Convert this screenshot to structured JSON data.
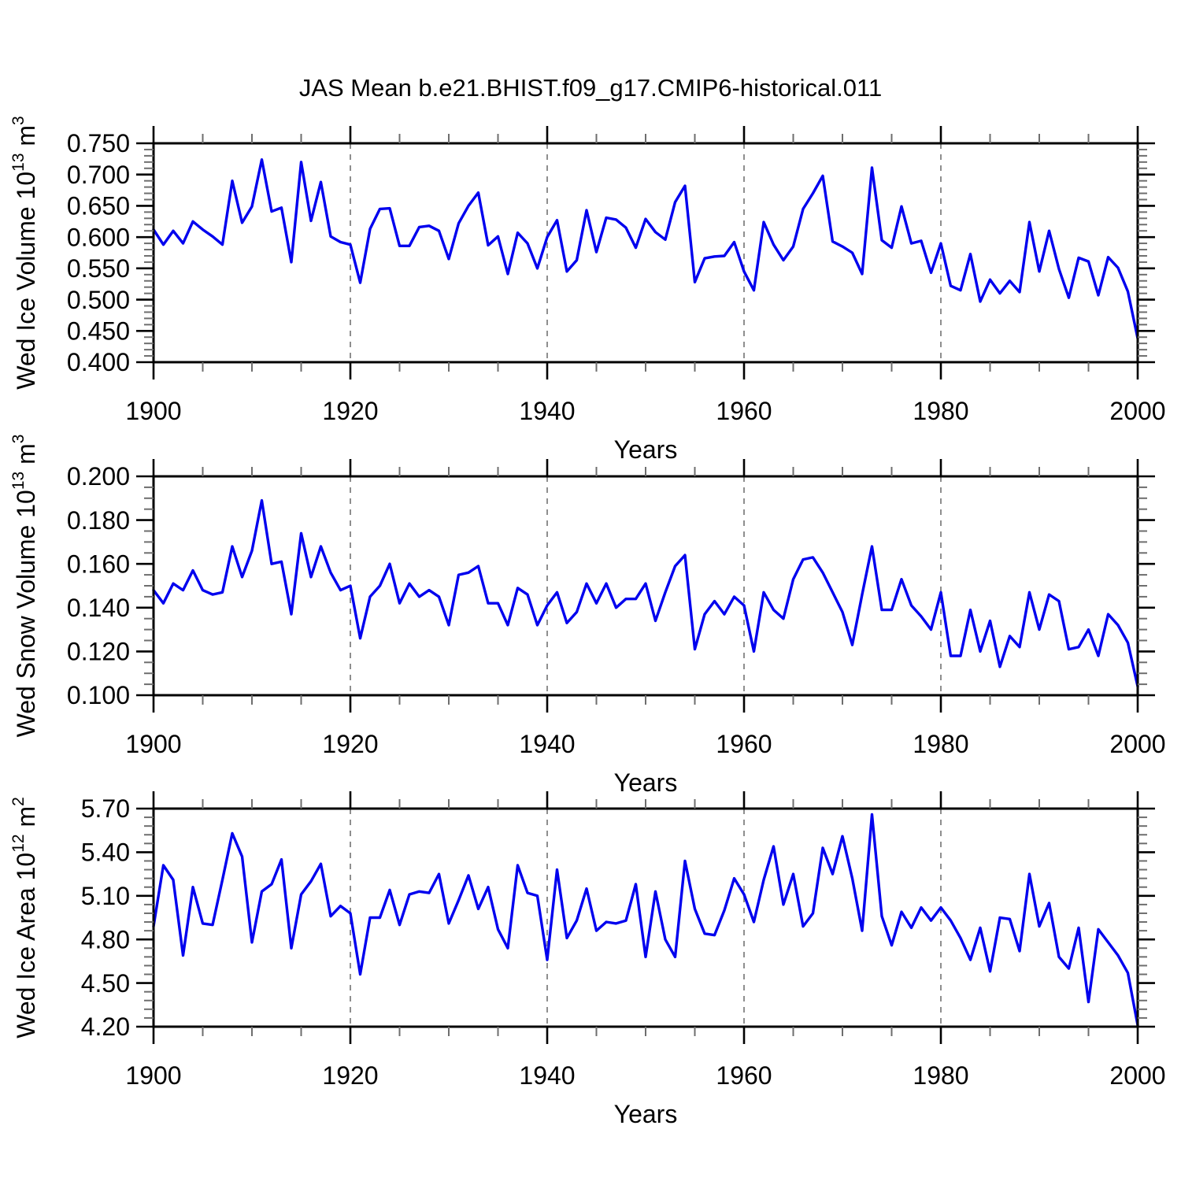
{
  "title": "JAS Mean b.e21.BHIST.f09_g17.CMIP6-historical.011",
  "colors": {
    "line": "#0000ee",
    "axis": "#000000",
    "minor_tick": "#6e6e6e",
    "grid": "#828282",
    "text": "#000000",
    "background": "#ffffff"
  },
  "chart_data": [
    {
      "type": "line",
      "name": "wed-ice-volume",
      "ylabel_plain": "Wed Ice Volume 10^13 m^3",
      "ylabel_segments": [
        [
          "Wed Ice Volume 10",
          false
        ],
        [
          "13",
          true
        ],
        [
          " m",
          false
        ],
        [
          "3",
          true
        ]
      ],
      "xlabel": "Years",
      "x_start": 1900,
      "x_end": 2000,
      "x_step": 1,
      "xticks_major": 20,
      "xticks_minor": 5,
      "ylim": [
        0.4,
        0.75
      ],
      "ytick_major": 0.05,
      "ytick_minor": 0.01,
      "ytick_decimals": 3,
      "grid_x": [
        1920,
        1940,
        1960,
        1980
      ],
      "legend": "none",
      "grid": "dashed-vertical-only",
      "values": [
        0.612,
        0.588,
        0.61,
        0.59,
        0.625,
        0.612,
        0.601,
        0.588,
        0.69,
        0.623,
        0.649,
        0.724,
        0.641,
        0.647,
        0.56,
        0.72,
        0.626,
        0.688,
        0.601,
        0.592,
        0.588,
        0.527,
        0.613,
        0.645,
        0.646,
        0.586,
        0.586,
        0.616,
        0.618,
        0.61,
        0.565,
        0.622,
        0.65,
        0.671,
        0.587,
        0.601,
        0.541,
        0.607,
        0.59,
        0.55,
        0.6,
        0.627,
        0.545,
        0.563,
        0.643,
        0.576,
        0.631,
        0.628,
        0.615,
        0.583,
        0.629,
        0.608,
        0.596,
        0.656,
        0.682,
        0.528,
        0.566,
        0.569,
        0.57,
        0.592,
        0.545,
        0.515,
        0.624,
        0.588,
        0.563,
        0.585,
        0.645,
        0.67,
        0.698,
        0.593,
        0.585,
        0.575,
        0.541,
        0.711,
        0.595,
        0.583,
        0.649,
        0.59,
        0.594,
        0.543,
        0.59,
        0.522,
        0.515,
        0.573,
        0.497,
        0.532,
        0.51,
        0.53,
        0.512,
        0.624,
        0.545,
        0.61,
        0.549,
        0.503,
        0.567,
        0.561,
        0.507,
        0.568,
        0.551,
        0.513,
        0.438
      ]
    },
    {
      "type": "line",
      "name": "wed-snow-volume",
      "ylabel_plain": "Wed Snow Volume 10^13 m^3",
      "ylabel_segments": [
        [
          "Wed Snow Volume 10",
          false
        ],
        [
          "13",
          true
        ],
        [
          " m",
          false
        ],
        [
          "3",
          true
        ]
      ],
      "xlabel": "Years",
      "x_start": 1900,
      "x_end": 2000,
      "x_step": 1,
      "xticks_major": 20,
      "xticks_minor": 5,
      "ylim": [
        0.1,
        0.2
      ],
      "ytick_major": 0.02,
      "ytick_minor": 0.005,
      "ytick_decimals": 3,
      "grid_x": [
        1920,
        1940,
        1960,
        1980
      ],
      "legend": "none",
      "grid": "dashed-vertical-only",
      "values": [
        0.148,
        0.142,
        0.151,
        0.148,
        0.157,
        0.148,
        0.146,
        0.147,
        0.168,
        0.154,
        0.166,
        0.189,
        0.16,
        0.161,
        0.137,
        0.174,
        0.154,
        0.168,
        0.156,
        0.148,
        0.15,
        0.126,
        0.145,
        0.15,
        0.16,
        0.142,
        0.151,
        0.145,
        0.148,
        0.145,
        0.132,
        0.155,
        0.156,
        0.159,
        0.142,
        0.142,
        0.132,
        0.149,
        0.146,
        0.132,
        0.141,
        0.147,
        0.133,
        0.138,
        0.151,
        0.142,
        0.151,
        0.14,
        0.144,
        0.144,
        0.151,
        0.134,
        0.147,
        0.159,
        0.164,
        0.121,
        0.137,
        0.143,
        0.137,
        0.145,
        0.141,
        0.12,
        0.147,
        0.139,
        0.135,
        0.153,
        0.162,
        0.163,
        0.156,
        0.147,
        0.138,
        0.123,
        0.146,
        0.168,
        0.139,
        0.139,
        0.153,
        0.141,
        0.136,
        0.13,
        0.147,
        0.118,
        0.118,
        0.139,
        0.12,
        0.134,
        0.113,
        0.127,
        0.122,
        0.147,
        0.13,
        0.146,
        0.143,
        0.121,
        0.122,
        0.13,
        0.118,
        0.137,
        0.132,
        0.124,
        0.104
      ]
    },
    {
      "type": "line",
      "name": "wed-ice-area",
      "ylabel_plain": "Wed Ice Area 10^12 m^2",
      "ylabel_segments": [
        [
          "Wed Ice Area 10",
          false
        ],
        [
          "12",
          true
        ],
        [
          " m",
          false
        ],
        [
          "2",
          true
        ]
      ],
      "xlabel": "Years",
      "x_start": 1900,
      "x_end": 2000,
      "x_step": 1,
      "xticks_major": 20,
      "xticks_minor": 5,
      "ylim": [
        4.2,
        5.7
      ],
      "ytick_major": 0.3,
      "ytick_minor": 0.06,
      "ytick_decimals": 2,
      "grid_x": [
        1920,
        1940,
        1960,
        1980
      ],
      "legend": "none",
      "grid": "dashed-vertical-only",
      "values": [
        4.89,
        5.31,
        5.21,
        4.69,
        5.16,
        4.91,
        4.9,
        5.21,
        5.53,
        5.37,
        4.78,
        5.13,
        5.18,
        5.35,
        4.74,
        5.11,
        5.2,
        5.32,
        4.96,
        5.03,
        4.98,
        4.56,
        4.95,
        4.95,
        5.14,
        4.9,
        5.11,
        5.13,
        5.12,
        5.25,
        4.91,
        5.07,
        5.24,
        5.01,
        5.16,
        4.87,
        4.74,
        5.31,
        5.12,
        5.1,
        4.66,
        5.28,
        4.81,
        4.93,
        5.15,
        4.86,
        4.92,
        4.91,
        4.93,
        5.18,
        4.68,
        5.13,
        4.8,
        4.68,
        5.34,
        5.01,
        4.84,
        4.83,
        5.0,
        5.22,
        5.11,
        4.92,
        5.21,
        5.44,
        5.04,
        5.25,
        4.89,
        4.98,
        5.43,
        5.25,
        5.51,
        5.22,
        4.86,
        5.66,
        4.96,
        4.76,
        4.99,
        4.88,
        5.02,
        4.93,
        5.02,
        4.93,
        4.81,
        4.66,
        4.88,
        4.58,
        4.95,
        4.94,
        4.72,
        5.25,
        4.89,
        5.05,
        4.68,
        4.6,
        4.88,
        4.37,
        4.87,
        4.78,
        4.69,
        4.57,
        4.21
      ]
    }
  ]
}
